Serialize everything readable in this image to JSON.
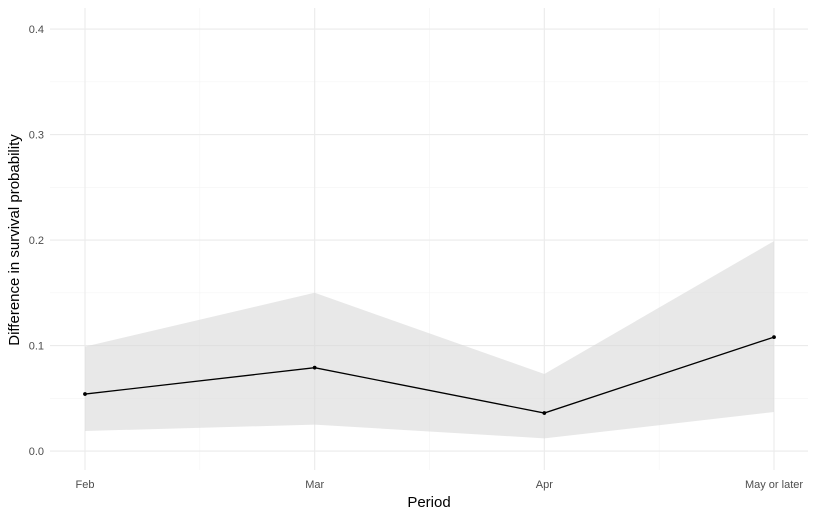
{
  "chart_data": {
    "type": "line",
    "title": "",
    "xlabel": "Period",
    "ylabel": "Difference in survival probability",
    "categories": [
      "Feb",
      "Mar",
      "Apr",
      "May or later"
    ],
    "series": [
      {
        "values": [
          0.054,
          0.079,
          0.036,
          0.108
        ],
        "lower": [
          0.019,
          0.025,
          0.012,
          0.037
        ],
        "upper": [
          0.099,
          0.15,
          0.073,
          0.199
        ]
      }
    ],
    "ylim": [
      -0.018,
      0.42
    ],
    "yticks": [
      0.0,
      0.1,
      0.2,
      0.3,
      0.4
    ],
    "ytick_labels": [
      "0.0",
      "0.1",
      "0.2",
      "0.3",
      "0.4"
    ],
    "grid": true,
    "legend": "none",
    "colors": {
      "line": "#000000",
      "ribbon": "#d9d9d9",
      "grid_major": "#ebebeb",
      "grid_minor": "#f4f4f4",
      "tick_text": "#4d4d4d"
    }
  }
}
